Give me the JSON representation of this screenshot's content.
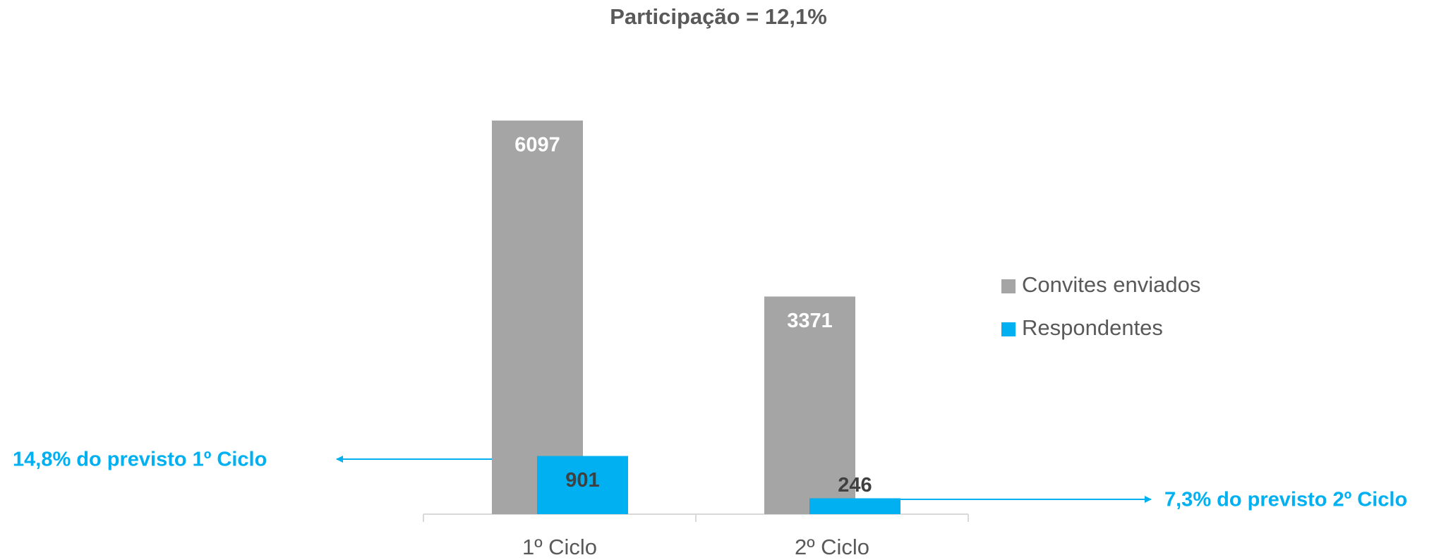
{
  "chart_data": {
    "type": "bar",
    "title": "Participação = 12,1%",
    "categories": [
      "1º Ciclo",
      "2º Ciclo"
    ],
    "series": [
      {
        "name": "Convites enviados",
        "color": "#a5a5a5",
        "values": [
          6097,
          3371
        ]
      },
      {
        "name": "Respondentes",
        "color": "#00b0f0",
        "values": [
          901,
          246
        ]
      }
    ],
    "ylim": [
      0,
      6500
    ],
    "legend": "right",
    "annotations": [
      "14,8% do previsto 1º Ciclo",
      "7,3% do previsto 2º Ciclo"
    ]
  }
}
